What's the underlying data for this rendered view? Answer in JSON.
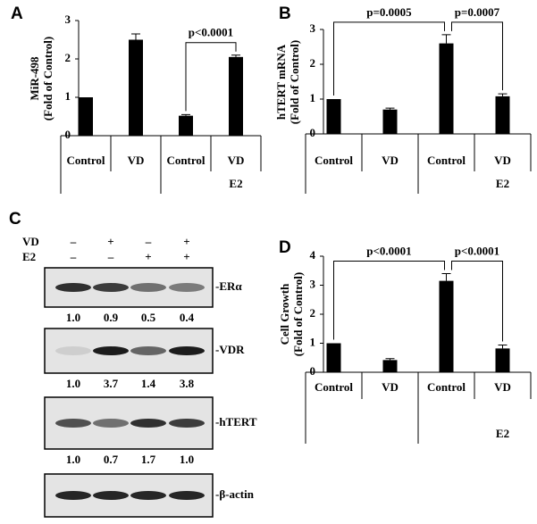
{
  "chart_data": [
    {
      "type": "bar",
      "panel_label": "A",
      "ylabel": [
        "MiR-498",
        "(Fold of Control)"
      ],
      "categories": [
        "Control",
        "VD",
        "Control",
        "VD"
      ],
      "group_label": "E2",
      "values": [
        1.0,
        2.5,
        0.52,
        2.05
      ],
      "errors": [
        null,
        0.15,
        0.03,
        0.05
      ],
      "color": "#000000",
      "ylim": [
        0,
        3
      ],
      "yticks": [
        0,
        1,
        2,
        3
      ],
      "annotations": [
        "p<0.0001"
      ]
    },
    {
      "type": "bar",
      "panel_label": "B",
      "ylabel": [
        "hTERT mRNA",
        "(Fold of Control)"
      ],
      "categories": [
        "Control",
        "VD",
        "Control",
        "VD"
      ],
      "group_label": "E2",
      "values": [
        1.0,
        0.7,
        2.6,
        1.08
      ],
      "errors": [
        null,
        0.04,
        0.25,
        0.07
      ],
      "color": "#000000",
      "ylim": [
        0,
        3
      ],
      "yticks": [
        0,
        1,
        2,
        3
      ],
      "annotations": [
        "p=0.0005",
        "p=0.0007"
      ]
    },
    {
      "type": "bar",
      "panel_label": "D",
      "ylabel": [
        "Cell Growth",
        "(Fold of Control)"
      ],
      "categories": [
        "Control",
        "VD",
        "Control",
        "VD"
      ],
      "group_label": "E2",
      "values": [
        1.0,
        0.42,
        3.15,
        0.82
      ],
      "errors": [
        null,
        0.05,
        0.25,
        0.12
      ],
      "color": "#000000",
      "ylim": [
        0,
        4
      ],
      "yticks": [
        0,
        1,
        2,
        3,
        4
      ],
      "annotations": [
        "p<0.0001",
        "p<0.0001"
      ]
    }
  ],
  "blot": {
    "panel_label": "C",
    "treatments": [
      {
        "name": "VD",
        "signs": [
          "–",
          "+",
          "–",
          "+"
        ]
      },
      {
        "name": "E2",
        "signs": [
          "–",
          "–",
          "+",
          "+"
        ]
      }
    ],
    "bands": [
      {
        "name": "-ERα",
        "quant": [
          "1.0",
          "0.9",
          "0.5",
          "0.4"
        ]
      },
      {
        "name": "-VDR",
        "quant": [
          "1.0",
          "3.7",
          "1.4",
          "3.8"
        ]
      },
      {
        "name": "-hTERT",
        "quant": [
          "1.0",
          "0.7",
          "1.7",
          "1.0"
        ]
      },
      {
        "name": "-β-actin"
      }
    ]
  }
}
